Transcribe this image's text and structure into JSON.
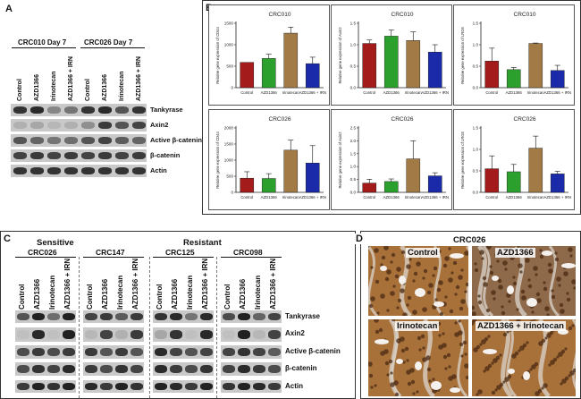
{
  "panel_a": {
    "letter": "A",
    "samples": [
      "CRC010 Day 7",
      "CRC026 Day 7"
    ],
    "lanes": [
      "Control",
      "AZD1366",
      "Irinotecan",
      "AZD1366 + IRN",
      "Control",
      "AZD1366",
      "Irinotecan",
      "AZD1366 + IRN"
    ],
    "proteins": [
      "Tankyrase",
      "Axin2",
      "Active β-catenin",
      "β-catenin",
      "Actin"
    ]
  },
  "panel_b": {
    "letter": "B"
  },
  "panel_c": {
    "letter": "C",
    "groups": [
      "Sensitive",
      "Resistant"
    ],
    "samples": [
      "CRC026",
      "CRC147",
      "CRC125",
      "CRC098"
    ],
    "lanes": [
      "Control",
      "AZD1366",
      "Irinotecan",
      "AZD1366 + IRN"
    ],
    "proteins": [
      "Tankyrase",
      "Axin2",
      "Active β-catenin",
      "β-catenin",
      "Actin"
    ]
  },
  "panel_d": {
    "letter": "D",
    "title": "CRC026",
    "images": [
      "Control",
      "AZD1366",
      "Irinotecan",
      "AZD1366 + Irinotecan"
    ]
  },
  "chart_data": [
    {
      "type": "bar",
      "title": "CRC010",
      "ylabel": "Relative gene expression of CD44",
      "categories": [
        "Control",
        "AZD1366",
        "Irinotecan",
        "AZD1366 + IRN"
      ],
      "values": [
        590,
        680,
        1270,
        560
      ],
      "errors": [
        0,
        100,
        140,
        150
      ],
      "ylim": [
        0,
        1500
      ],
      "yticks": [
        "0",
        "500",
        "1000",
        "1500"
      ],
      "colors": [
        "#a31b1b",
        "#2ca02c",
        "#a27a45",
        "#1a2aa8"
      ]
    },
    {
      "type": "bar",
      "title": "CRC010",
      "ylabel": "Relative gene expression of Axin2",
      "categories": [
        "Control",
        "AZD1366",
        "Irinotecan",
        "AZD1366 + IRN"
      ],
      "values": [
        1.03,
        1.2,
        1.1,
        0.83
      ],
      "errors": [
        0.08,
        0.14,
        0.2,
        0.17
      ],
      "ylim": [
        0,
        1.5
      ],
      "yticks": [
        "0.0",
        "0.5",
        "1.0",
        "1.5"
      ],
      "colors": [
        "#a31b1b",
        "#2ca02c",
        "#a27a45",
        "#1a2aa8"
      ]
    },
    {
      "type": "bar",
      "title": "CRC010",
      "ylabel": "Relative gene expression of LRG5",
      "categories": [
        "Control",
        "AZD1366",
        "Irinotecan",
        "AZD1366 + IRN"
      ],
      "values": [
        0.62,
        0.42,
        1.03,
        0.4
      ],
      "errors": [
        0.3,
        0.05,
        0.01,
        0.12
      ],
      "ylim": [
        0,
        1.5
      ],
      "yticks": [
        "0.0",
        "0.5",
        "1.0",
        "1.5"
      ],
      "colors": [
        "#a31b1b",
        "#2ca02c",
        "#a27a45",
        "#1a2aa8"
      ]
    },
    {
      "type": "bar",
      "title": "CRC026",
      "ylabel": "Relative gene expression of CD44",
      "categories": [
        "Control",
        "AZD1366",
        "Irinotecan",
        "AZD1366 + IRN"
      ],
      "values": [
        440,
        430,
        1310,
        910
      ],
      "errors": [
        200,
        150,
        310,
        540
      ],
      "ylim": [
        0,
        2000
      ],
      "yticks": [
        "0",
        "500",
        "1000",
        "1500",
        "2000"
      ],
      "colors": [
        "#a31b1b",
        "#2ca02c",
        "#a27a45",
        "#1a2aa8"
      ]
    },
    {
      "type": "bar",
      "title": "CRC026",
      "ylabel": "Relative gene expression of Axin2",
      "categories": [
        "Control",
        "AZD1366",
        "Irinotecan",
        "AZD1366 + IRN"
      ],
      "values": [
        0.36,
        0.42,
        1.3,
        0.64
      ],
      "errors": [
        0.15,
        0.1,
        0.7,
        0.12
      ],
      "ylim": [
        0,
        2.5
      ],
      "yticks": [
        "0.0",
        "0.5",
        "1.0",
        "1.5",
        "2.0",
        "2.5"
      ],
      "colors": [
        "#a31b1b",
        "#2ca02c",
        "#a27a45",
        "#1a2aa8"
      ]
    },
    {
      "type": "bar",
      "title": "CRC026",
      "ylabel": "Relative gene expression of LRG5",
      "categories": [
        "Control",
        "AZD1366",
        "Irinotecan",
        "AZD1366 + IRN"
      ],
      "values": [
        0.55,
        0.48,
        1.03,
        0.43
      ],
      "errors": [
        0.3,
        0.17,
        0.28,
        0.06
      ],
      "ylim": [
        0,
        1.5
      ],
      "yticks": [
        "0.0",
        "0.5",
        "1.0",
        "1.5"
      ],
      "colors": [
        "#a31b1b",
        "#2ca02c",
        "#a27a45",
        "#1a2aa8"
      ]
    }
  ]
}
